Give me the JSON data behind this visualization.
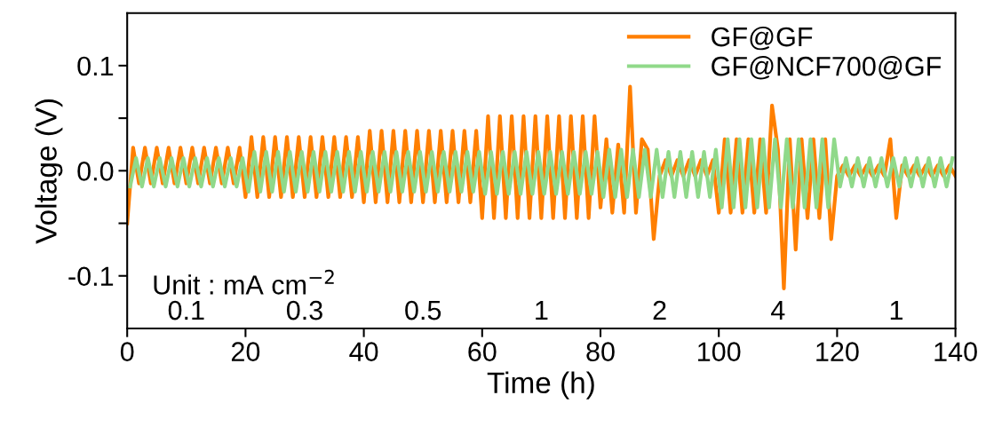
{
  "chart_data": {
    "type": "line",
    "xlabel": "Time (h)",
    "ylabel": "Voltage (V)",
    "xlim": [
      0,
      140
    ],
    "xticks": [
      0,
      20,
      40,
      60,
      80,
      100,
      120,
      140
    ],
    "ylim": [
      -0.15,
      0.15
    ],
    "yticks": [
      -0.1,
      {
        "value": -0.05,
        "label": null
      },
      {
        "value": 0,
        "label": "0.0"
      },
      {
        "value": 0.05,
        "label": null
      },
      0.1
    ],
    "grid": false,
    "legend": "top right",
    "line_style": "solid",
    "marker": "none",
    "x": [
      0,
      1,
      2,
      3,
      4,
      5,
      6,
      7,
      8,
      9,
      10,
      11,
      12,
      13,
      14,
      15,
      16,
      17,
      18,
      19,
      20,
      21,
      22,
      23,
      24,
      25,
      26,
      27,
      28,
      29,
      30,
      31,
      32,
      33,
      34,
      35,
      36,
      37,
      38,
      39,
      40,
      41,
      42,
      43,
      44,
      45,
      46,
      47,
      48,
      49,
      50,
      51,
      52,
      53,
      54,
      55,
      56,
      57,
      58,
      59,
      60,
      61,
      62,
      63,
      64,
      65,
      66,
      67,
      68,
      69,
      70,
      71,
      72,
      73,
      74,
      75,
      76,
      77,
      78,
      79,
      80,
      81,
      82,
      83,
      84,
      85,
      86,
      87,
      88,
      89,
      90,
      91,
      92,
      93,
      94,
      95,
      96,
      97,
      98,
      99,
      100,
      101,
      102,
      103,
      104,
      105,
      106,
      107,
      108,
      109,
      110,
      111,
      112,
      113,
      114,
      115,
      116,
      117,
      118,
      119,
      120,
      121,
      122,
      123,
      124,
      125,
      126,
      127,
      128,
      129,
      130,
      131,
      132,
      133,
      134,
      135,
      136,
      137,
      138,
      139,
      140
    ],
    "series": [
      {
        "name": "GF@GF",
        "color": "#ff7f00",
        "values": [
          -0.05,
          0.022,
          -0.012,
          0.022,
          -0.012,
          0.022,
          -0.012,
          0.022,
          -0.012,
          0.022,
          -0.012,
          0.022,
          -0.012,
          0.022,
          -0.012,
          0.022,
          -0.012,
          0.022,
          -0.012,
          0.022,
          -0.025,
          0.032,
          -0.025,
          0.032,
          -0.025,
          0.032,
          -0.025,
          0.032,
          -0.025,
          0.032,
          -0.025,
          0.032,
          -0.025,
          0.032,
          -0.025,
          0.032,
          -0.025,
          0.032,
          -0.025,
          0.032,
          -0.03,
          0.038,
          -0.03,
          0.038,
          -0.03,
          0.038,
          -0.03,
          0.038,
          -0.03,
          0.038,
          -0.03,
          0.038,
          -0.03,
          0.038,
          -0.03,
          0.038,
          -0.03,
          0.038,
          -0.03,
          0.038,
          -0.045,
          0.052,
          -0.045,
          0.052,
          -0.045,
          0.052,
          -0.045,
          0.052,
          -0.045,
          0.052,
          -0.045,
          0.052,
          -0.045,
          0.052,
          -0.045,
          0.052,
          -0.045,
          0.052,
          -0.045,
          0.052,
          -0.035,
          0.03,
          -0.04,
          0.025,
          -0.04,
          0.08,
          -0.04,
          0.03,
          0.02,
          -0.065,
          -0.005,
          0.01,
          -0.005,
          0.01,
          -0.005,
          0.01,
          -0.005,
          0.01,
          -0.005,
          0.01,
          -0.04,
          0.03,
          -0.04,
          0.03,
          -0.04,
          0.03,
          -0.04,
          0.03,
          -0.04,
          0.062,
          0.02,
          -0.112,
          0.03,
          -0.075,
          0.03,
          -0.045,
          0.03,
          -0.045,
          0.03,
          -0.065,
          -0.005,
          0.005,
          -0.005,
          0.005,
          -0.005,
          0.005,
          -0.005,
          0.005,
          -0.005,
          0.03,
          -0.045,
          0.005,
          -0.005,
          0.005,
          -0.005,
          0.005,
          -0.005,
          0.005,
          -0.005,
          0.005,
          -0.005
        ]
      },
      {
        "name": "GF@NCF700@GF",
        "color": "#90d98a",
        "x": [
          0.5,
          1.5,
          2.5,
          3.5,
          4.5,
          5.5,
          6.5,
          7.5,
          8.5,
          9.5,
          10.5,
          11.5,
          12.5,
          13.5,
          14.5,
          15.5,
          16.5,
          17.5,
          18.5,
          19.5,
          20.5,
          21.5,
          22.5,
          23.5,
          24.5,
          25.5,
          26.5,
          27.5,
          28.5,
          29.5,
          30.5,
          31.5,
          32.5,
          33.5,
          34.5,
          35.5,
          36.5,
          37.5,
          38.5,
          39.5,
          40.5,
          41.5,
          42.5,
          43.5,
          44.5,
          45.5,
          46.5,
          47.5,
          48.5,
          49.5,
          50.5,
          51.5,
          52.5,
          53.5,
          54.5,
          55.5,
          56.5,
          57.5,
          58.5,
          59.5,
          60.5,
          61.5,
          62.5,
          63.5,
          64.5,
          65.5,
          66.5,
          67.5,
          68.5,
          69.5,
          70.5,
          71.5,
          72.5,
          73.5,
          74.5,
          75.5,
          76.5,
          77.5,
          78.5,
          79.5,
          80.5,
          81.5,
          82.5,
          83.5,
          84.5,
          85.5,
          86.5,
          87.5,
          88.5,
          89.5,
          90.5,
          91.5,
          92.5,
          93.5,
          94.5,
          95.5,
          96.5,
          97.5,
          98.5,
          99.5,
          100.5,
          101.5,
          102.5,
          103.5,
          104.5,
          105.5,
          106.5,
          107.5,
          108.5,
          109.5,
          110.5,
          111.5,
          112.5,
          113.5,
          114.5,
          115.5,
          116.5,
          117.5,
          118.5,
          119.5,
          120.5,
          121.5,
          122.5,
          123.5,
          124.5,
          125.5,
          126.5,
          127.5,
          128.5,
          129.5,
          130.5,
          131.5,
          132.5,
          133.5,
          134.5,
          135.5,
          136.5,
          137.5,
          138.5,
          139.5
        ],
        "values": [
          -0.015,
          0.012,
          -0.015,
          0.012,
          -0.015,
          0.012,
          -0.015,
          0.012,
          -0.015,
          0.012,
          -0.015,
          0.012,
          -0.015,
          0.012,
          -0.015,
          0.012,
          -0.015,
          0.012,
          -0.015,
          0.012,
          -0.02,
          0.018,
          -0.02,
          0.018,
          -0.02,
          0.018,
          -0.02,
          0.018,
          -0.02,
          0.018,
          -0.02,
          0.018,
          -0.02,
          0.018,
          -0.02,
          0.018,
          -0.02,
          0.018,
          -0.02,
          0.018,
          -0.02,
          0.018,
          -0.02,
          0.018,
          -0.02,
          0.018,
          -0.02,
          0.018,
          -0.02,
          0.018,
          -0.02,
          0.018,
          -0.02,
          0.018,
          -0.02,
          0.018,
          -0.02,
          0.018,
          -0.02,
          0.018,
          -0.022,
          0.018,
          -0.022,
          0.018,
          -0.022,
          0.018,
          -0.022,
          0.018,
          -0.022,
          0.018,
          -0.022,
          0.018,
          -0.022,
          0.018,
          -0.022,
          0.018,
          -0.022,
          0.018,
          -0.022,
          0.018,
          -0.025,
          0.02,
          -0.025,
          0.02,
          -0.025,
          0.02,
          -0.025,
          0.02,
          -0.025,
          0.02,
          -0.025,
          0.018,
          -0.025,
          0.018,
          -0.025,
          0.018,
          -0.025,
          0.018,
          -0.025,
          0.02,
          -0.035,
          0.03,
          -0.035,
          0.03,
          -0.035,
          0.03,
          -0.035,
          0.03,
          -0.035,
          0.03,
          -0.035,
          0.03,
          -0.035,
          0.03,
          -0.035,
          0.03,
          -0.035,
          0.03,
          -0.035,
          0.03,
          -0.015,
          0.012,
          -0.015,
          0.012,
          -0.015,
          0.012,
          -0.015,
          0.012,
          -0.015,
          0.012,
          -0.015,
          0.012,
          -0.015,
          0.012,
          -0.015,
          0.012,
          -0.015,
          0.012,
          -0.015,
          0.012
        ]
      }
    ],
    "annotations": [
      "Unit : mA cm$^{−2}$",
      "0.1",
      "0.3",
      "0.5",
      "1",
      "2",
      "4",
      "1"
    ]
  }
}
